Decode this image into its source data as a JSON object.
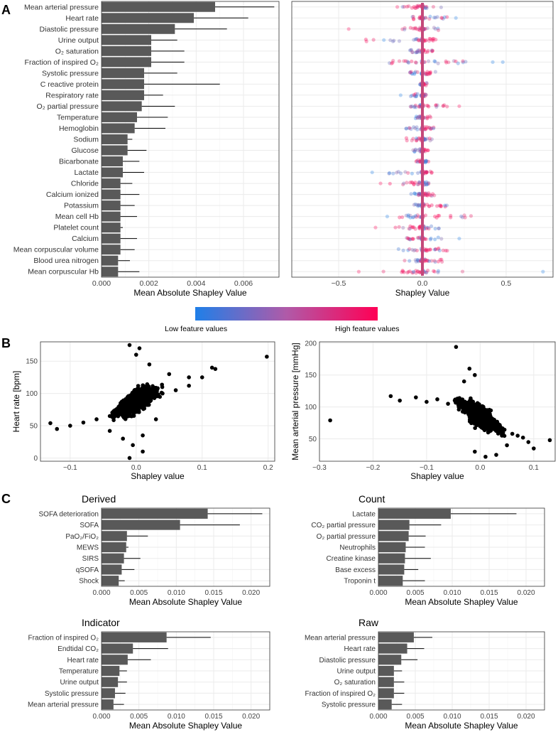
{
  "panel_labels": {
    "a": "A",
    "b": "B",
    "c": "C"
  },
  "colors": {
    "bar": "#595959",
    "low": "#1f7fe8",
    "high": "#ff0055",
    "mid": "#c95a8c",
    "grid": "#ebebeb",
    "border": "#333333",
    "point": "#000000"
  },
  "legend": {
    "low_label": "Low feature values",
    "high_label": "High feature values"
  },
  "chart_data": [
    {
      "id": "a-bar",
      "type": "bar",
      "orientation": "horizontal",
      "xlabel": "Mean Absolute Shapley Value",
      "xlim": [
        0,
        0.0075
      ],
      "xticks": [
        0,
        0.002,
        0.004,
        0.006
      ],
      "xtick_labels": [
        "0.000",
        "0.002",
        "0.004",
        "0.006"
      ],
      "categories": [
        "Mean arterial pressure",
        "Heart rate",
        "Diastolic pressure",
        "Urine output",
        "O₂ saturation",
        "Fraction of inspired O₂",
        "Systolic pressure",
        "C reactive protein",
        "Respiratory rate",
        "O₂ partial pressure",
        "Temperature",
        "Hemoglobin",
        "Sodium",
        "Glucose",
        "Bicarbonate",
        "Lactate",
        "Chloride",
        "Calcium ionized",
        "Potassium",
        "Mean cell Hb",
        "Platelet count",
        "Calcium",
        "Mean corpuscular volume",
        "Blood urea nitrogen",
        "Mean corpuscular Hb"
      ],
      "values": [
        0.0048,
        0.0039,
        0.0031,
        0.0021,
        0.0021,
        0.0021,
        0.0018,
        0.0018,
        0.0018,
        0.0017,
        0.0015,
        0.0014,
        0.0011,
        0.0011,
        0.0009,
        0.0009,
        0.0008,
        0.0008,
        0.0008,
        0.0008,
        0.0008,
        0.0008,
        0.0008,
        0.0007,
        0.0007
      ],
      "errors": [
        0.0073,
        0.0062,
        0.0053,
        0.0032,
        0.0035,
        0.0035,
        0.0032,
        0.005,
        0.0026,
        0.0031,
        0.0028,
        0.0027,
        0.0013,
        0.0019,
        0.0016,
        0.0018,
        0.0013,
        0.0016,
        0.0014,
        0.0015,
        0.0009,
        0.0015,
        0.0014,
        0.0012,
        0.0016
      ]
    },
    {
      "id": "a-beeswarm",
      "type": "scatter",
      "xlabel": "Shapley Value",
      "xlim": [
        -0.78,
        0.78
      ],
      "xticks": [
        -0.5,
        0,
        0.5
      ],
      "xtick_labels": [
        "−0.5",
        "0.0",
        "0.5"
      ],
      "rows": 25,
      "spread_neg": [
        0.12,
        0.07,
        0.12,
        0.35,
        0.08,
        0.2,
        0.1,
        0.02,
        0.07,
        0.1,
        0.05,
        0.1,
        0.1,
        0.06,
        0.06,
        0.3,
        0.2,
        0.07,
        0.05,
        0.18,
        0.2,
        0.1,
        0.2,
        0.15,
        0.25
      ],
      "spread_pos": [
        0.12,
        0.15,
        0.1,
        0.1,
        0.08,
        0.3,
        0.08,
        0.03,
        0.03,
        0.15,
        0.05,
        0.08,
        0.06,
        0.05,
        0.05,
        0.06,
        0.06,
        0.08,
        0.15,
        0.3,
        0.1,
        0.15,
        0.15,
        0.12,
        0.25
      ],
      "outliers": [
        [
          0,
          -0.15
        ],
        [
          1,
          0.2
        ],
        [
          2,
          -0.44
        ],
        [
          3,
          -0.23
        ],
        [
          5,
          0.48
        ],
        [
          5,
          0.42
        ],
        [
          8,
          -0.13
        ],
        [
          9,
          0.22
        ],
        [
          15,
          -0.3
        ],
        [
          16,
          -0.25
        ],
        [
          19,
          -0.21
        ],
        [
          20,
          -0.28
        ],
        [
          21,
          0.22
        ],
        [
          24,
          -0.38
        ],
        [
          24,
          0.72
        ]
      ],
      "high_on_positive": [
        0,
        0,
        0,
        1,
        1,
        0,
        1,
        1,
        1,
        1,
        1,
        1,
        0,
        1,
        0,
        1,
        0,
        1,
        1,
        1,
        0,
        0,
        1,
        1,
        0
      ]
    },
    {
      "id": "b-left",
      "type": "scatter",
      "xlabel": "Shapley value",
      "ylabel": "Heart rate [bpm]",
      "xlim": [
        -0.145,
        0.21
      ],
      "ylim": [
        -5,
        180
      ],
      "xticks": [
        -0.1,
        0,
        0.1,
        0.2
      ],
      "xtick_labels": [
        "−0.1",
        "0.0",
        "0.1",
        "0.2"
      ],
      "yticks": [
        0,
        50,
        100,
        150
      ],
      "ytick_labels": [
        "0",
        "50",
        "100",
        "150"
      ],
      "points": [
        [
          -0.13,
          54
        ],
        [
          0.198,
          157
        ],
        [
          -0.12,
          45
        ],
        [
          -0.1,
          50
        ],
        [
          -0.08,
          55
        ],
        [
          -0.06,
          60
        ],
        [
          -0.04,
          65
        ],
        [
          -0.02,
          72
        ],
        [
          0,
          85
        ],
        [
          0.02,
          95
        ],
        [
          0.04,
          100
        ],
        [
          0.06,
          105
        ],
        [
          0.08,
          112
        ],
        [
          0.1,
          125
        ],
        [
          0.12,
          138
        ],
        [
          0.115,
          140
        ],
        [
          0.08,
          125
        ],
        [
          0.05,
          130
        ],
        [
          0.02,
          145
        ],
        [
          0,
          160
        ],
        [
          -0.01,
          175
        ],
        [
          0.005,
          170
        ],
        [
          -0.01,
          0
        ],
        [
          0.01,
          10
        ],
        [
          -0.005,
          20
        ],
        [
          -0.02,
          30
        ],
        [
          0.01,
          35
        ],
        [
          -0.04,
          42
        ],
        [
          0.03,
          60
        ]
      ],
      "cloud": {
        "description": "positive relationship"
      }
    },
    {
      "id": "b-right",
      "type": "scatter",
      "xlabel": "Shapley value",
      "ylabel": "Mean arterial pressure [mmHg]",
      "xlim": [
        -0.3,
        0.14
      ],
      "ylim": [
        15,
        202
      ],
      "xticks": [
        -0.3,
        -0.2,
        -0.1,
        0,
        0.1
      ],
      "xtick_labels": [
        "−0.3",
        "−0.2",
        "−0.1",
        "0.0",
        "0.1"
      ],
      "yticks": [
        50,
        100,
        150,
        200
      ],
      "ytick_labels": [
        "50",
        "100",
        "150",
        "200"
      ],
      "points": [
        [
          -0.28,
          79
        ],
        [
          -0.167,
          117
        ],
        [
          -0.045,
          194
        ],
        [
          0.13,
          48
        ],
        [
          -0.15,
          110
        ],
        [
          -0.12,
          115
        ],
        [
          -0.1,
          108
        ],
        [
          -0.08,
          112
        ],
        [
          -0.06,
          105
        ],
        [
          -0.04,
          100
        ],
        [
          -0.02,
          90
        ],
        [
          0,
          75
        ],
        [
          0.02,
          68
        ],
        [
          0.04,
          62
        ],
        [
          0.06,
          58
        ],
        [
          0.08,
          52
        ],
        [
          0.1,
          35
        ],
        [
          0.09,
          45
        ],
        [
          0.07,
          55
        ],
        [
          0.05,
          40
        ],
        [
          0.03,
          25
        ],
        [
          0.01,
          22
        ],
        [
          -0.01,
          30
        ],
        [
          -0.03,
          140
        ],
        [
          -0.02,
          160
        ],
        [
          -0.01,
          150
        ]
      ],
      "cloud": {
        "description": "negative relationship"
      }
    },
    {
      "id": "c-derived",
      "type": "bar",
      "orientation": "horizontal",
      "title": "Derived",
      "xlabel": "Mean Absolute Shapley Value",
      "xlim": [
        0,
        0.0225
      ],
      "xticks": [
        0,
        0.005,
        0.01,
        0.015,
        0.02
      ],
      "xtick_labels": [
        "0.000",
        "0.005",
        "0.010",
        "0.015",
        "0.020"
      ],
      "categories": [
        "SOFA deterioration",
        "SOFA",
        "PaO₂/FiO₂",
        "MEWS",
        "SIRS",
        "qSOFA",
        "Shock"
      ],
      "values": [
        0.0142,
        0.0105,
        0.0034,
        0.0033,
        0.003,
        0.0027,
        0.0023
      ],
      "errors": [
        0.0215,
        0.0185,
        0.0062,
        0.0036,
        0.0052,
        0.0044,
        0.0031
      ]
    },
    {
      "id": "c-count",
      "type": "bar",
      "orientation": "horizontal",
      "title": "Count",
      "xlabel": "Mean Absolute Shapley Value",
      "xlim": [
        0,
        0.0225
      ],
      "xticks": [
        0,
        0.005,
        0.01,
        0.015,
        0.02
      ],
      "xtick_labels": [
        "0.000",
        "0.005",
        "0.010",
        "0.015",
        "0.020"
      ],
      "categories": [
        "Lactate",
        "CO₂ partial pressure",
        "O₂ partial pressure",
        "Neutrophils",
        "Creatine kinase",
        "Base excess",
        "Troponin t"
      ],
      "values": [
        0.0098,
        0.0042,
        0.0041,
        0.0037,
        0.0036,
        0.0035,
        0.0033
      ],
      "errors": [
        0.0187,
        0.0085,
        0.0064,
        0.0063,
        0.0071,
        0.0054,
        0.0063
      ]
    },
    {
      "id": "c-indicator",
      "type": "bar",
      "orientation": "horizontal",
      "title": "Indicator",
      "xlabel": "Mean Absolute Shapley Value",
      "xlim": [
        0,
        0.0225
      ],
      "xticks": [
        0,
        0.005,
        0.01,
        0.015,
        0.02
      ],
      "xtick_labels": [
        "0.000",
        "0.005",
        "0.010",
        "0.015",
        "0.020"
      ],
      "categories": [
        "Fraction of inspired O₂",
        "Endtidal CO₂",
        "Heart rate",
        "Temperature",
        "Urine output",
        "Systolic pressure",
        "Mean arterial pressure"
      ],
      "values": [
        0.0087,
        0.0042,
        0.0035,
        0.0024,
        0.0022,
        0.0018,
        0.0016
      ],
      "errors": [
        0.0146,
        0.0089,
        0.0066,
        0.0034,
        0.0034,
        0.0032,
        0.003
      ]
    },
    {
      "id": "c-raw",
      "type": "bar",
      "orientation": "horizontal",
      "title": "Raw",
      "xlabel": "Mean Absolute Shapley Value",
      "xlim": [
        0,
        0.0225
      ],
      "xticks": [
        0,
        0.005,
        0.01,
        0.015,
        0.02
      ],
      "xtick_labels": [
        "0.000",
        "0.005",
        "0.010",
        "0.015",
        "0.020"
      ],
      "categories": [
        "Mean arterial pressure",
        "Heart rate",
        "Diastolic pressure",
        "Urine output",
        "O₂ saturation",
        "Fraction of inspired O₂",
        "Systolic pressure"
      ],
      "values": [
        0.0048,
        0.0039,
        0.0031,
        0.0021,
        0.0021,
        0.0021,
        0.0018
      ],
      "errors": [
        0.0073,
        0.0062,
        0.0053,
        0.0032,
        0.0035,
        0.0035,
        0.0032
      ]
    }
  ]
}
